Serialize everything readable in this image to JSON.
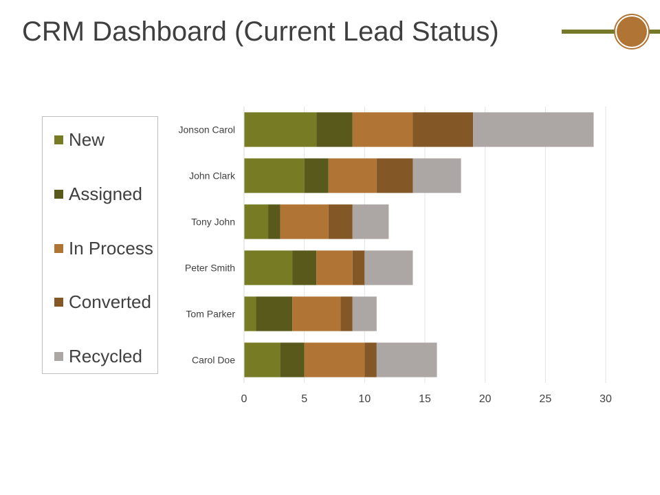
{
  "slide": {
    "title": "CRM Dashboard (Current Lead Status)"
  },
  "colors": {
    "accent_line": "#77792a",
    "accent_circle": "#b07535"
  },
  "chart_data": {
    "type": "bar",
    "orientation": "horizontal",
    "stacked": true,
    "title": "",
    "xlabel": "",
    "ylabel": "",
    "xlim": [
      0,
      30
    ],
    "xticks": [
      0,
      5,
      10,
      15,
      20,
      25,
      30
    ],
    "grid": true,
    "legend_position": "left",
    "categories": [
      "Jonson Carol",
      "John Clark",
      "Tony John",
      "Peter Smith",
      "Tom Parker",
      "Carol Doe"
    ],
    "series": [
      {
        "name": "New",
        "color": "#777b23",
        "values": [
          6,
          5,
          2,
          4,
          1,
          3
        ]
      },
      {
        "name": "Assigned",
        "color": "#58591b",
        "values": [
          3,
          2,
          1,
          2,
          3,
          2
        ]
      },
      {
        "name": "In Process",
        "color": "#b07535",
        "values": [
          5,
          4,
          4,
          3,
          4,
          5
        ]
      },
      {
        "name": "Converted",
        "color": "#845726",
        "values": [
          5,
          3,
          2,
          1,
          1,
          1
        ]
      },
      {
        "name": "Recycled",
        "color": "#aca7a5",
        "values": [
          10,
          4,
          3,
          4,
          2,
          5
        ]
      }
    ]
  }
}
